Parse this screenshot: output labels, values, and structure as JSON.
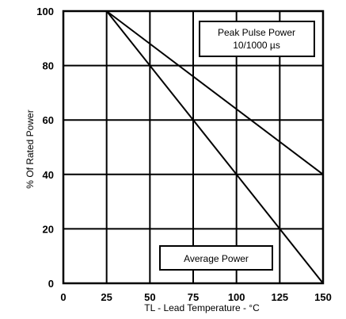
{
  "chart_data": {
    "type": "line",
    "xlabel": "TL - Lead Temperature - °C",
    "ylabel": "% Of Rated Power",
    "xlim": [
      0,
      150
    ],
    "ylim": [
      0,
      100
    ],
    "x_ticks": [
      "0",
      "25",
      "50",
      "75",
      "100",
      "125",
      "150"
    ],
    "y_ticks": [
      "0",
      "20",
      "40",
      "60",
      "80",
      "100"
    ],
    "grid": true,
    "series": [
      {
        "name": "Peak Pulse Power",
        "x": [
          25,
          150
        ],
        "y": [
          100,
          40
        ]
      },
      {
        "name": "Average Power",
        "x": [
          25,
          150
        ],
        "y": [
          100,
          0
        ]
      }
    ],
    "annotations": {
      "peak_label_line1": "Peak Pulse Power",
      "peak_label_line2": "10/1000 µs",
      "average_label": "Average Power"
    }
  }
}
